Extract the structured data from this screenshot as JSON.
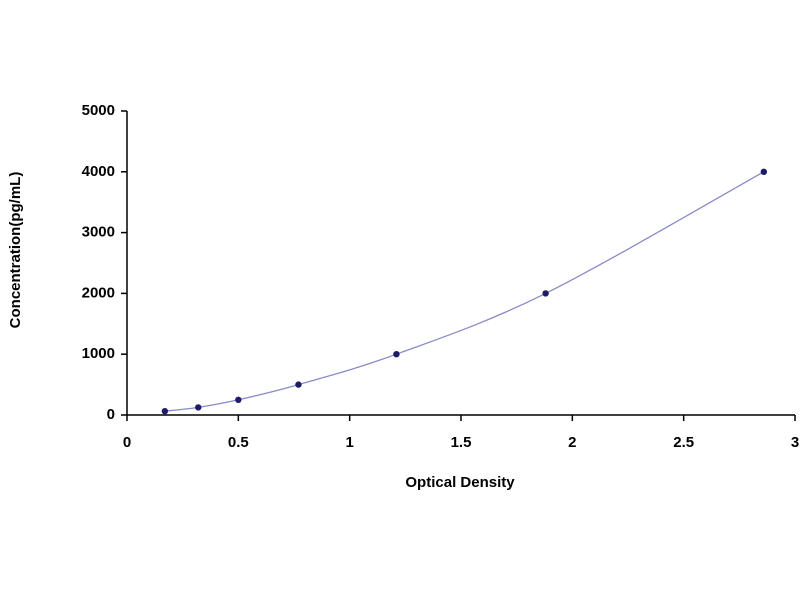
{
  "chart_data": {
    "type": "scatter",
    "x_label": "Optical Density",
    "y_label": "Concentration(pg/mL)",
    "x": [
      0.17,
      0.32,
      0.5,
      0.77,
      1.21,
      1.88,
      2.86
    ],
    "values": [
      62.5,
      125,
      250,
      500,
      1000,
      2000,
      4000
    ],
    "color": "#1c1c6a",
    "line_color": "#8a8ac8",
    "smooth_line": true,
    "xlim": [
      0,
      3
    ],
    "xticks": [
      0,
      0.5,
      1,
      1.5,
      2,
      2.5,
      3
    ],
    "ylim": [
      0,
      5000
    ],
    "yticks": [
      0,
      1000,
      2000,
      3000,
      4000,
      5000
    ]
  }
}
